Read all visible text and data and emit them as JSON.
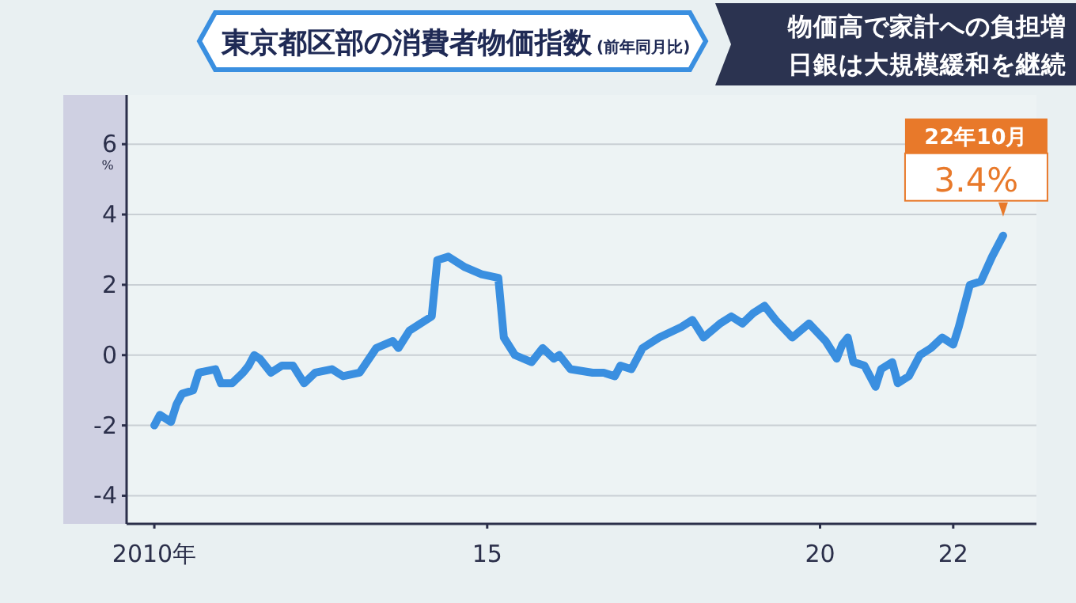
{
  "chart_data": {
    "type": "line",
    "title": "東京都区部の消費者物価指数",
    "subtitle": "(前年同月比)",
    "ylabel": "%",
    "annotations": [
      "物価高で家計への負担増",
      "日銀は大規模緩和を継続",
      "22年10月",
      "3.4%"
    ],
    "x": [
      "2010-01",
      "2010-02",
      "2010-04",
      "2010-05",
      "2010-06",
      "2010-08",
      "2010-09",
      "2010-12",
      "2011-01",
      "2011-03",
      "2011-05",
      "2011-06",
      "2011-07",
      "2011-08",
      "2011-10",
      "2011-12",
      "2012-02",
      "2012-04",
      "2012-06",
      "2012-09",
      "2012-11",
      "2013-02",
      "2013-05",
      "2013-08",
      "2013-09",
      "2013-11",
      "2014-01",
      "2014-03",
      "2014-04",
      "2014-06",
      "2014-09",
      "2014-12",
      "2015-03",
      "2015-04",
      "2015-06",
      "2015-09",
      "2015-11",
      "2016-01",
      "2016-02",
      "2016-04",
      "2016-08",
      "2016-10",
      "2016-12",
      "2017-01",
      "2017-03",
      "2017-05",
      "2017-08",
      "2017-12",
      "2018-02",
      "2018-04",
      "2018-07",
      "2018-09",
      "2018-11",
      "2019-01",
      "2019-03",
      "2019-05",
      "2019-08",
      "2019-11",
      "2020-02",
      "2020-04",
      "2020-05",
      "2020-06",
      "2020-07",
      "2020-09",
      "2020-11",
      "2020-12",
      "2021-02",
      "2021-03",
      "2021-05",
      "2021-07",
      "2021-09",
      "2021-11",
      "2022-01",
      "2022-02",
      "2022-04",
      "2022-06",
      "2022-08",
      "2022-10"
    ],
    "values": [
      -2.0,
      -1.7,
      -1.9,
      -1.4,
      -1.1,
      -1.0,
      -0.5,
      -0.4,
      -0.8,
      -0.8,
      -0.5,
      -0.3,
      0.0,
      -0.1,
      -0.5,
      -0.3,
      -0.3,
      -0.8,
      -0.5,
      -0.4,
      -0.6,
      -0.5,
      0.2,
      0.4,
      0.2,
      0.7,
      0.9,
      1.1,
      2.7,
      2.8,
      2.5,
      2.3,
      2.2,
      0.5,
      0.0,
      -0.2,
      0.2,
      -0.1,
      0.0,
      -0.4,
      -0.5,
      -0.5,
      -0.6,
      -0.3,
      -0.4,
      0.2,
      0.5,
      0.8,
      1.0,
      0.5,
      0.9,
      1.1,
      0.9,
      1.2,
      1.4,
      1.0,
      0.5,
      0.9,
      0.4,
      -0.1,
      0.3,
      0.5,
      -0.2,
      -0.3,
      -0.9,
      -0.4,
      -0.2,
      -0.8,
      -0.6,
      0.0,
      0.2,
      0.5,
      0.3,
      0.8,
      2.0,
      2.1,
      2.8,
      3.4
    ],
    "color": "#3a8fe0",
    "line_style": "solid",
    "marker": "none",
    "grid": "y",
    "xlim": [
      "2009-08",
      "2023-04"
    ],
    "xticks": [
      {
        "value": "2010-01",
        "label": "2010年"
      },
      {
        "value": "2015-01",
        "label": "15"
      },
      {
        "value": "2020-01",
        "label": "20"
      },
      {
        "value": "2022-01",
        "label": "22"
      }
    ],
    "ylim": [
      -4.8,
      7.4
    ],
    "yticks": [
      -4,
      -2,
      0,
      2,
      4,
      6
    ]
  }
}
